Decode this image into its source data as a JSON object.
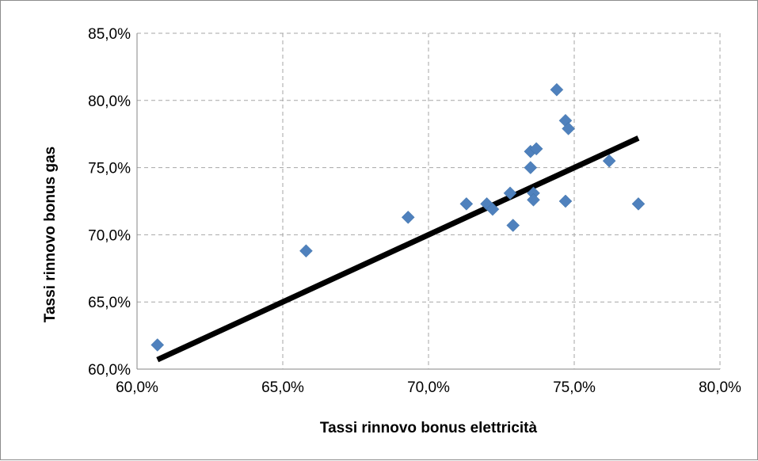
{
  "chart_data": {
    "type": "scatter",
    "title": "",
    "xlabel": "Tassi rinnovo bonus elettricità",
    "ylabel": "Tassi rinnovo bonus gas",
    "xlim": [
      60,
      80
    ],
    "ylim": [
      60,
      85
    ],
    "x_ticks": [
      60,
      65,
      70,
      75,
      80
    ],
    "y_ticks": [
      60,
      65,
      70,
      75,
      80,
      85
    ],
    "x_tick_labels": [
      "60,0%",
      "65,0%",
      "70,0%",
      "75,0%",
      "80,0%"
    ],
    "y_tick_labels": [
      "60,0%",
      "65,0%",
      "70,0%",
      "75,0%",
      "80,0%",
      "85,0%"
    ],
    "grid": true,
    "legend": "none",
    "series": [
      {
        "marker": "diamond",
        "color": "#4f81bd",
        "points": [
          {
            "x": 60.7,
            "y": 61.8
          },
          {
            "x": 65.8,
            "y": 68.8
          },
          {
            "x": 69.3,
            "y": 71.3
          },
          {
            "x": 71.3,
            "y": 72.3
          },
          {
            "x": 72.0,
            "y": 72.3
          },
          {
            "x": 72.2,
            "y": 71.9
          },
          {
            "x": 72.8,
            "y": 73.1
          },
          {
            "x": 72.9,
            "y": 70.7
          },
          {
            "x": 73.5,
            "y": 76.2
          },
          {
            "x": 73.7,
            "y": 76.4
          },
          {
            "x": 73.5,
            "y": 75.0
          },
          {
            "x": 73.6,
            "y": 73.1
          },
          {
            "x": 73.6,
            "y": 72.6
          },
          {
            "x": 74.4,
            "y": 80.8
          },
          {
            "x": 74.7,
            "y": 78.5
          },
          {
            "x": 74.8,
            "y": 77.9
          },
          {
            "x": 74.7,
            "y": 72.5
          },
          {
            "x": 76.2,
            "y": 75.5
          },
          {
            "x": 77.2,
            "y": 72.3
          }
        ]
      }
    ],
    "trendline": {
      "color": "#000000",
      "from": {
        "x": 60.7,
        "y": 60.7
      },
      "to": {
        "x": 77.2,
        "y": 77.2
      }
    }
  }
}
